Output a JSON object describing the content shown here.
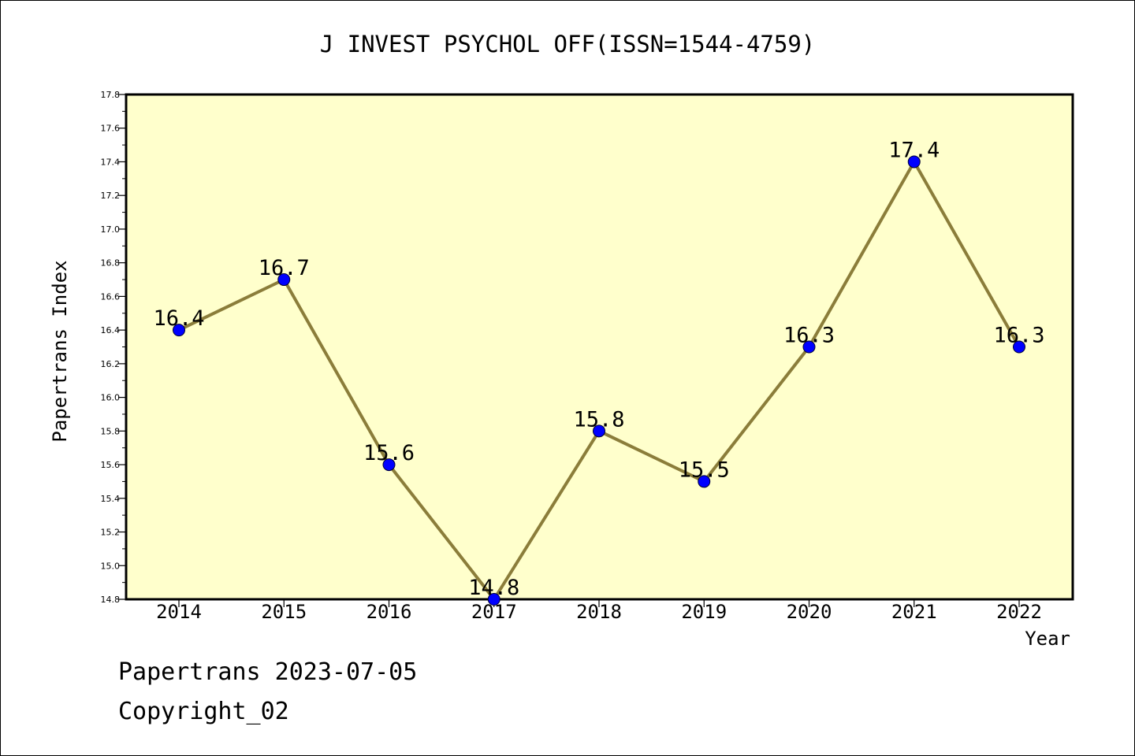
{
  "chart_data": {
    "type": "line",
    "title": "J INVEST PSYCHOL OFF(ISSN=1544-4759)",
    "xlabel": "Year",
    "ylabel": "Papertrans Index",
    "categories": [
      "2014",
      "2015",
      "2016",
      "2017",
      "2018",
      "2019",
      "2020",
      "2021",
      "2022"
    ],
    "series": [
      {
        "values": [
          16.4,
          16.7,
          15.6,
          14.8,
          15.8,
          15.5,
          16.3,
          17.4,
          16.3
        ]
      }
    ],
    "data_labels": [
      "16.4",
      "16.7",
      "15.6",
      "14.8",
      "15.8",
      "15.5",
      "16.3",
      "17.4",
      "16.3"
    ],
    "ylim": [
      14.8,
      17.8
    ],
    "yticks": [
      "14.8",
      "15.0",
      "15.2",
      "15.4",
      "15.6",
      "15.8",
      "16.0",
      "16.2",
      "16.4",
      "16.6",
      "16.8",
      "17.0",
      "17.2",
      "17.4",
      "17.6",
      "17.8"
    ],
    "grid": false,
    "legend": "none",
    "colors": {
      "plot_background": "#ffffcc",
      "line": "#8b7d3a",
      "marker": "#0000ff"
    }
  },
  "footer": {
    "line1": "Papertrans 2023-07-05",
    "line2": "Copyright_02"
  }
}
